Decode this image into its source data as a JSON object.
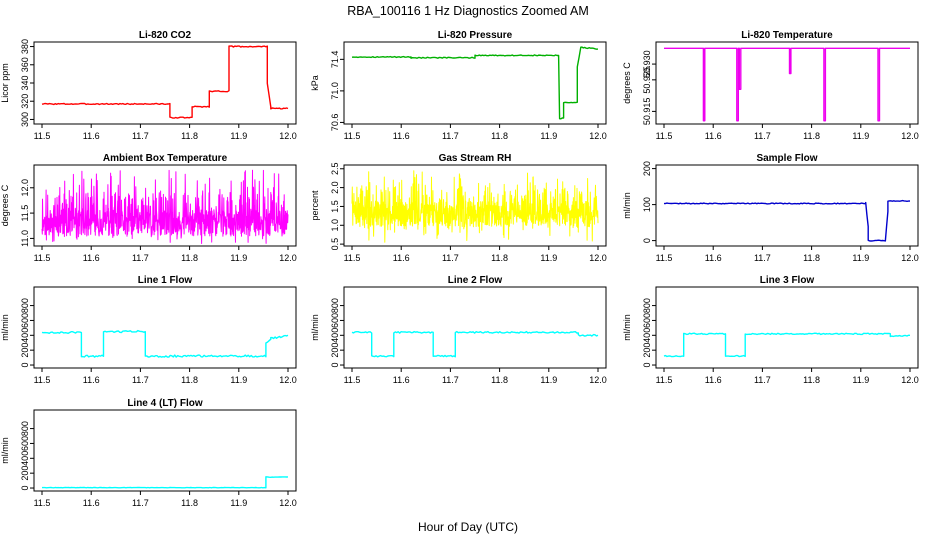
{
  "chart_data": {
    "title": "RBA_100116  1 Hz Diagnostics Zoomed AM",
    "xlabel": "Hour of Day (UTC)",
    "xlim": [
      11.5,
      12.0
    ],
    "xticks": [
      "11.5",
      "11.6",
      "11.7",
      "11.8",
      "11.9",
      "12.0"
    ],
    "panels": [
      {
        "title": "Li-820 CO2",
        "type": "line",
        "ylabel": "Licor ppm",
        "color": "#ff0000",
        "ylim": [
          295,
          385
        ],
        "yticks": [
          "300",
          "320",
          "340",
          "360",
          "380"
        ],
        "noise": 0.6,
        "x": [
          11.5,
          11.76,
          11.76,
          11.805,
          11.805,
          11.84,
          11.84,
          11.88,
          11.88,
          11.958,
          11.958,
          11.965,
          11.965,
          12.0
        ],
        "y": [
          317,
          317,
          302,
          302,
          314,
          314,
          331,
          331,
          380,
          380,
          340,
          314,
          312,
          312
        ]
      },
      {
        "title": "Li-820 Pressure",
        "type": "line",
        "ylabel": "kPa",
        "color": "#00b000",
        "ylim": [
          70.58,
          71.62
        ],
        "yticks": [
          "70.6",
          "71.0",
          "71.4"
        ],
        "noise": 0.006,
        "x": [
          11.5,
          11.62,
          11.62,
          11.75,
          11.75,
          11.88,
          11.88,
          11.92,
          11.922,
          11.93,
          11.93,
          11.958,
          11.958,
          11.965,
          11.97,
          12.0
        ],
        "y": [
          71.43,
          71.43,
          71.42,
          71.42,
          71.45,
          71.45,
          71.45,
          71.45,
          70.65,
          70.65,
          70.85,
          70.85,
          71.3,
          71.55,
          71.55,
          71.53
        ]
      },
      {
        "title": "Li-820 Temperature",
        "type": "line",
        "ylabel": "degrees C",
        "color": "#ee00ee",
        "ylim": [
          50.911,
          50.937
        ],
        "yticks": [
          "50.915",
          "50.925",
          "50.930"
        ],
        "noise": 0,
        "x": [
          11.5,
          11.58,
          11.58,
          11.583,
          11.583,
          11.648,
          11.648,
          11.651,
          11.651,
          11.653,
          11.653,
          11.656,
          11.656,
          11.755,
          11.755,
          11.758,
          11.758,
          11.825,
          11.825,
          11.828,
          11.828,
          11.935,
          11.935,
          11.938,
          11.938,
          12.0
        ],
        "y": [
          50.935,
          50.935,
          50.912,
          50.912,
          50.935,
          50.935,
          50.912,
          50.912,
          50.935,
          50.935,
          50.922,
          50.922,
          50.935,
          50.935,
          50.927,
          50.927,
          50.935,
          50.935,
          50.912,
          50.912,
          50.935,
          50.935,
          50.912,
          50.912,
          50.935,
          50.935
        ]
      },
      {
        "title": "Ambient Box Temperature",
        "type": "line",
        "ylabel": "degrees C",
        "color": "#ff00ff",
        "ylim": [
          10.85,
          12.45
        ],
        "yticks": [
          "11.0",
          "11.5",
          "12.0"
        ],
        "noise_band": [
          10.9,
          12.35
        ],
        "noise_center": 11.3,
        "seed": 11,
        "x": [],
        "y": []
      },
      {
        "title": "Gas Stream RH",
        "type": "line",
        "ylabel": "percent",
        "color": "#ffff00",
        "ylim": [
          0.45,
          2.6
        ],
        "yticks": [
          "0.5",
          "1.0",
          "1.5",
          "2.0",
          "2.5"
        ],
        "noise_band": [
          0.55,
          2.45
        ],
        "noise_center": 1.3,
        "seed": 7,
        "x": [],
        "y": []
      },
      {
        "title": "Sample Flow",
        "type": "line",
        "ylabel": "ml/min",
        "color": "#0000cc",
        "ylim": [
          -15,
          210
        ],
        "yticks": [
          "0",
          "100",
          "200"
        ],
        "noise": 1.2,
        "x": [
          11.5,
          11.91,
          11.91,
          11.915,
          11.915,
          11.95,
          11.95,
          11.955,
          11.955,
          12.0
        ],
        "y": [
          103,
          103,
          105,
          40,
          0,
          0,
          0,
          80,
          110,
          110
        ]
      },
      {
        "title": "Line 1 Flow",
        "type": "line",
        "ylabel": "ml/min",
        "color": "#00ffff",
        "ylim": [
          -40,
          1050
        ],
        "yticks": [
          "0",
          "200",
          "400",
          "600",
          "800"
        ],
        "noise": 14,
        "x": [
          11.5,
          11.58,
          11.58,
          11.625,
          11.625,
          11.71,
          11.71,
          11.955,
          11.955,
          11.965,
          11.965,
          12.0
        ],
        "y": [
          440,
          440,
          120,
          120,
          450,
          450,
          120,
          120,
          300,
          350,
          360,
          400
        ]
      },
      {
        "title": "Line 2 Flow",
        "type": "line",
        "ylabel": "ml/min",
        "color": "#00ffff",
        "ylim": [
          -40,
          1050
        ],
        "yticks": [
          "0",
          "200",
          "400",
          "600",
          "800"
        ],
        "noise": 10,
        "x": [
          11.5,
          11.54,
          11.54,
          11.585,
          11.585,
          11.665,
          11.665,
          11.71,
          11.71,
          11.96,
          11.96,
          12.0
        ],
        "y": [
          440,
          440,
          120,
          120,
          440,
          440,
          120,
          120,
          440,
          440,
          400,
          400
        ]
      },
      {
        "title": "Line 3 Flow",
        "type": "line",
        "ylabel": "ml/min",
        "color": "#00ffff",
        "ylim": [
          -40,
          1050
        ],
        "yticks": [
          "0",
          "200",
          "400",
          "600",
          "800"
        ],
        "noise": 8,
        "x": [
          11.5,
          11.54,
          11.54,
          11.625,
          11.625,
          11.665,
          11.665,
          11.96,
          11.96,
          12.0
        ],
        "y": [
          120,
          120,
          420,
          420,
          120,
          120,
          420,
          420,
          380,
          400
        ]
      },
      {
        "title": "Line 4 (LT) Flow",
        "type": "line",
        "ylabel": "ml/min",
        "color": "#00ffff",
        "ylim": [
          -40,
          1050
        ],
        "yticks": [
          "0",
          "200",
          "400",
          "600",
          "800"
        ],
        "noise": 2,
        "x": [
          11.5,
          11.955,
          11.955,
          11.965,
          12.0
        ],
        "y": [
          5,
          5,
          150,
          145,
          150
        ]
      }
    ]
  }
}
